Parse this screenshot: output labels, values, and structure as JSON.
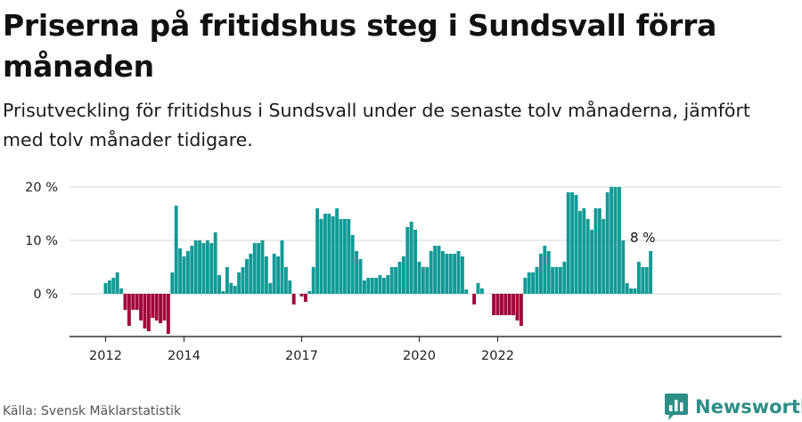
{
  "header": {
    "title": "Priserna på fritidshus steg i Sundsvall förra månaden",
    "subtitle": "Prisutveckling för fritidshus i Sundsvall under de senaste tolv månaderna, jämfört med tolv månader tidigare."
  },
  "footer": {
    "source": "Källa: Svensk Mäklarstatistik",
    "brand": "Newsworthy"
  },
  "colors": {
    "positive": "#109a96",
    "negative": "#a0073a",
    "grid": "#dddddd",
    "axis": "#333333",
    "brand": "#2c8f86"
  },
  "chart_data": {
    "type": "bar",
    "title": "Priserna på fritidshus steg i Sundsvall förra månaden",
    "xlabel": "",
    "ylabel": "",
    "ylim": [
      -8,
      20
    ],
    "yticks": [
      0,
      10,
      20
    ],
    "ytick_labels": [
      "0 %",
      "10 %",
      "20 %"
    ],
    "grid": true,
    "x_start": "2011-12",
    "xticks": [
      {
        "label": "2012",
        "index": 0
      },
      {
        "label": "2014",
        "index": 20
      },
      {
        "label": "2017",
        "index": 50
      },
      {
        "label": "2020",
        "index": 80
      },
      {
        "label": "2022",
        "index": 100
      }
    ],
    "values": [
      2,
      2.5,
      3,
      4,
      1,
      -3,
      -6,
      -3,
      -3,
      -5,
      -6.5,
      -7,
      -4.5,
      -5,
      -5.5,
      -5,
      -7.5,
      4,
      16.5,
      8.5,
      7,
      8,
      9,
      10,
      10,
      9.5,
      10,
      9.5,
      11.5,
      3.5,
      0.5,
      5,
      2,
      1.5,
      4,
      5,
      6.5,
      7.5,
      9.5,
      9.5,
      10,
      7,
      2,
      7.5,
      7,
      10,
      5,
      2.5,
      -2,
      0,
      -0.5,
      -1.5,
      0.5,
      5,
      16,
      14,
      15,
      15,
      14.5,
      16,
      14,
      14,
      14,
      11,
      8,
      6.5,
      2.5,
      3,
      3,
      3,
      3.5,
      3,
      3.5,
      5,
      5,
      6,
      7,
      12.5,
      13.5,
      12,
      6,
      5,
      5,
      8,
      9,
      9,
      8,
      7.5,
      7.5,
      7.5,
      8,
      7,
      0.8,
      0,
      -2,
      2,
      1,
      0,
      0,
      -4,
      -4,
      -4,
      -4,
      -4,
      -4,
      -5,
      -6,
      3,
      4,
      4,
      5,
      7.5,
      9,
      8,
      5,
      5,
      5,
      6,
      19,
      19,
      18.5,
      15.5,
      16,
      14,
      12,
      16,
      16,
      14,
      19,
      20,
      20,
      20,
      10,
      2,
      1,
      1,
      6,
      5,
      5,
      8
    ],
    "annotations": [
      {
        "label": "8 %",
        "index": 137,
        "value": 8
      }
    ]
  }
}
